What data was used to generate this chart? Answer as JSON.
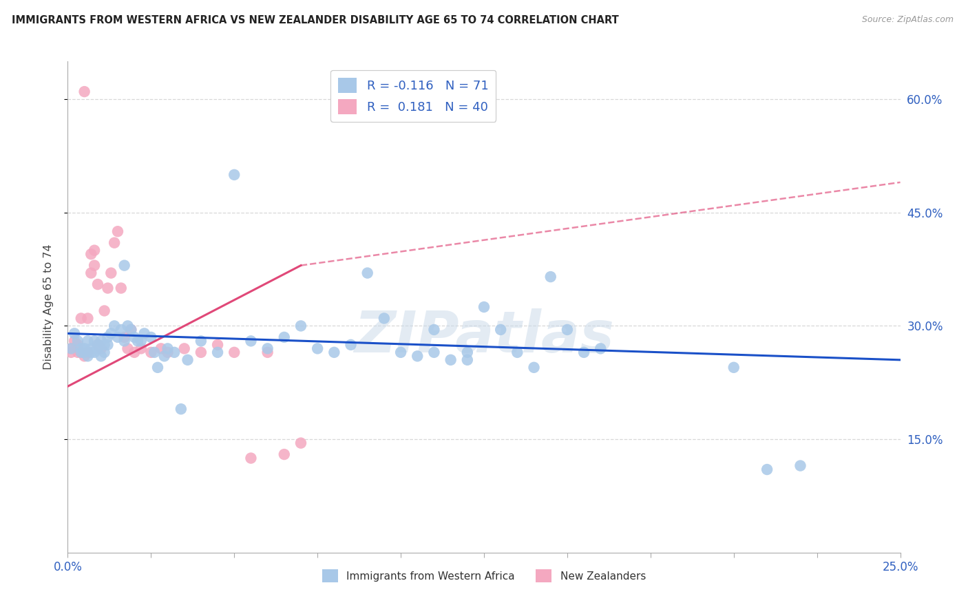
{
  "title": "IMMIGRANTS FROM WESTERN AFRICA VS NEW ZEALANDER DISABILITY AGE 65 TO 74 CORRELATION CHART",
  "source": "Source: ZipAtlas.com",
  "ylabel": "Disability Age 65 to 74",
  "legend_blue_label": "Immigrants from Western Africa",
  "legend_pink_label": "New Zealanders",
  "R_blue": -0.116,
  "N_blue": 71,
  "R_pink": 0.181,
  "N_pink": 40,
  "xlim": [
    0.0,
    0.25
  ],
  "ylim": [
    0.0,
    0.65
  ],
  "right_ytick_vals": [
    0.15,
    0.3,
    0.45,
    0.6
  ],
  "right_ytick_labels": [
    "15.0%",
    "30.0%",
    "45.0%",
    "60.0%"
  ],
  "xtick_vals": [
    0.0,
    0.025,
    0.05,
    0.075,
    0.1,
    0.125,
    0.15,
    0.175,
    0.2,
    0.225,
    0.25
  ],
  "blue_color": "#a8c8e8",
  "pink_color": "#f4a8c0",
  "line_blue": "#1a50c8",
  "line_pink": "#e04878",
  "watermark": "ZIPatlas",
  "background_color": "#ffffff",
  "grid_color": "#d8d8d8",
  "blue_scatter_x": [
    0.001,
    0.002,
    0.003,
    0.004,
    0.004,
    0.005,
    0.005,
    0.006,
    0.006,
    0.007,
    0.007,
    0.008,
    0.008,
    0.009,
    0.009,
    0.01,
    0.01,
    0.011,
    0.011,
    0.012,
    0.012,
    0.013,
    0.014,
    0.015,
    0.016,
    0.017,
    0.017,
    0.018,
    0.019,
    0.02,
    0.021,
    0.022,
    0.023,
    0.025,
    0.026,
    0.027,
    0.029,
    0.03,
    0.032,
    0.034,
    0.036,
    0.04,
    0.045,
    0.05,
    0.055,
    0.06,
    0.065,
    0.07,
    0.075,
    0.08,
    0.085,
    0.09,
    0.095,
    0.1,
    0.105,
    0.11,
    0.115,
    0.12,
    0.125,
    0.13,
    0.135,
    0.14,
    0.145,
    0.15,
    0.155,
    0.16,
    0.2,
    0.21,
    0.22,
    0.11,
    0.12
  ],
  "blue_scatter_y": [
    0.27,
    0.29,
    0.28,
    0.27,
    0.265,
    0.265,
    0.27,
    0.28,
    0.26,
    0.265,
    0.27,
    0.28,
    0.265,
    0.27,
    0.275,
    0.28,
    0.26,
    0.275,
    0.265,
    0.285,
    0.275,
    0.29,
    0.3,
    0.285,
    0.295,
    0.28,
    0.38,
    0.3,
    0.295,
    0.285,
    0.28,
    0.28,
    0.29,
    0.285,
    0.265,
    0.245,
    0.26,
    0.27,
    0.265,
    0.19,
    0.255,
    0.28,
    0.265,
    0.5,
    0.28,
    0.27,
    0.285,
    0.3,
    0.27,
    0.265,
    0.275,
    0.37,
    0.31,
    0.265,
    0.26,
    0.295,
    0.255,
    0.265,
    0.325,
    0.295,
    0.265,
    0.245,
    0.365,
    0.295,
    0.265,
    0.27,
    0.245,
    0.11,
    0.115,
    0.265,
    0.255
  ],
  "pink_scatter_x": [
    0.001,
    0.001,
    0.002,
    0.003,
    0.003,
    0.004,
    0.004,
    0.005,
    0.005,
    0.006,
    0.006,
    0.007,
    0.007,
    0.008,
    0.008,
    0.009,
    0.009,
    0.01,
    0.011,
    0.012,
    0.013,
    0.014,
    0.015,
    0.016,
    0.017,
    0.018,
    0.019,
    0.02,
    0.022,
    0.025,
    0.028,
    0.03,
    0.035,
    0.04,
    0.045,
    0.05,
    0.055,
    0.06,
    0.065,
    0.07
  ],
  "pink_scatter_y": [
    0.265,
    0.27,
    0.28,
    0.265,
    0.275,
    0.31,
    0.265,
    0.61,
    0.26,
    0.31,
    0.265,
    0.37,
    0.395,
    0.38,
    0.4,
    0.355,
    0.275,
    0.27,
    0.32,
    0.35,
    0.37,
    0.41,
    0.425,
    0.35,
    0.285,
    0.27,
    0.295,
    0.265,
    0.27,
    0.265,
    0.27,
    0.265,
    0.27,
    0.265,
    0.275,
    0.265,
    0.125,
    0.265,
    0.13,
    0.145
  ],
  "blue_line_x0": 0.0,
  "blue_line_x1": 0.25,
  "blue_line_y0": 0.29,
  "blue_line_y1": 0.255,
  "pink_line_solid_x0": 0.0,
  "pink_line_solid_x1": 0.07,
  "pink_line_solid_y0": 0.22,
  "pink_line_solid_y1": 0.38,
  "pink_line_dash_x0": 0.07,
  "pink_line_dash_x1": 0.25,
  "pink_line_dash_y0": 0.38,
  "pink_line_dash_y1": 0.49
}
